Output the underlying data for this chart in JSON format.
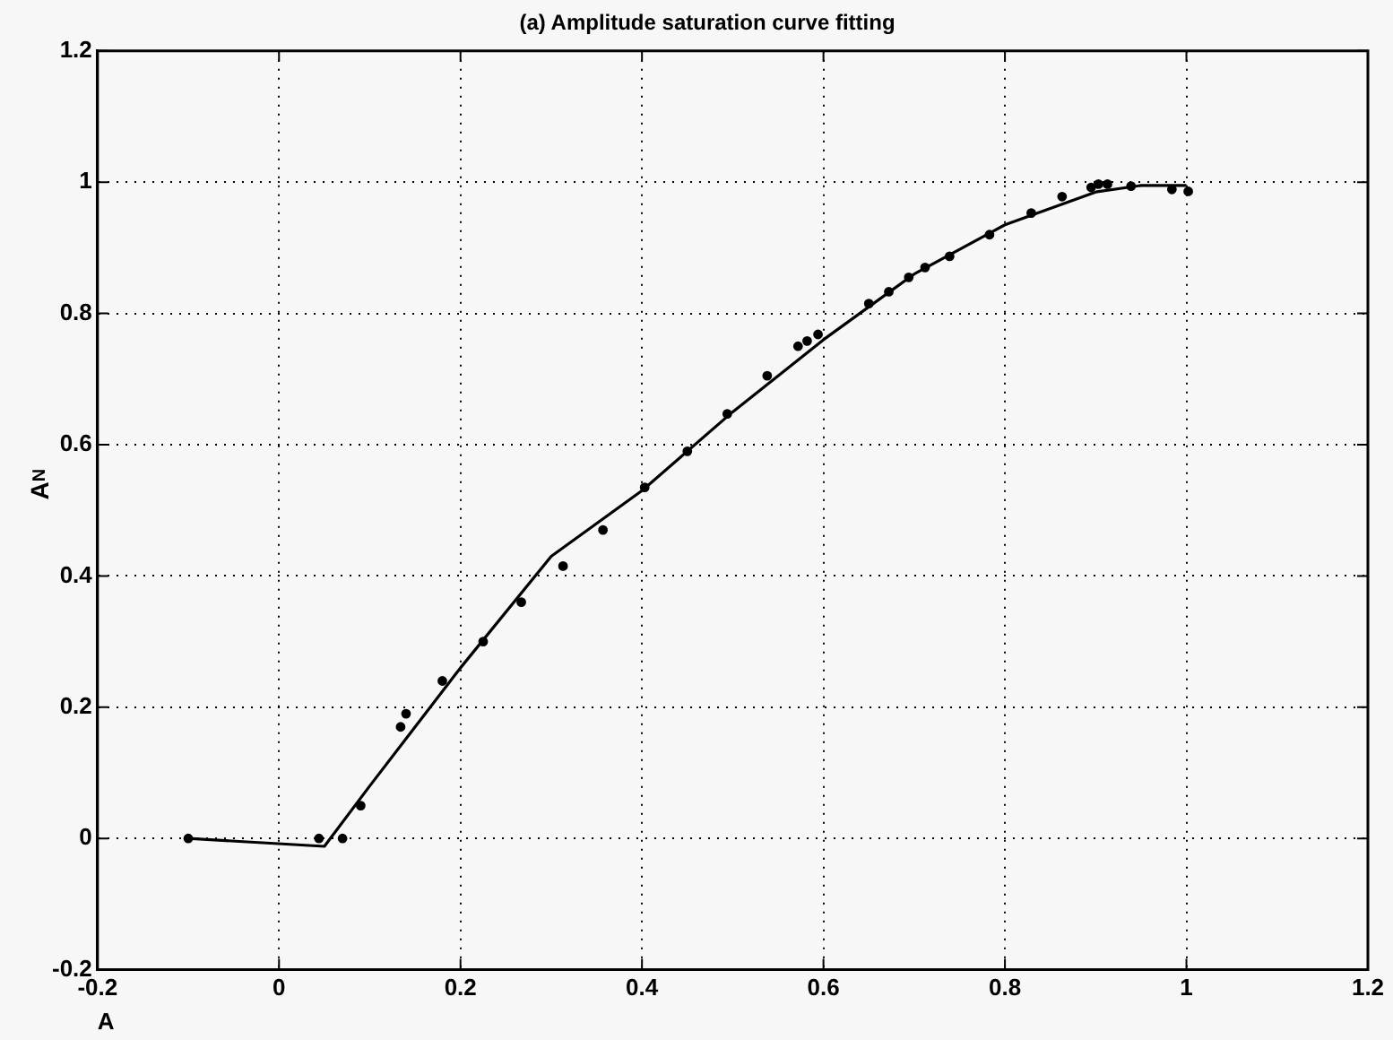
{
  "chart_data": {
    "type": "scatter",
    "title": "(a) Amplitude saturation curve fitting",
    "xlabel": "A",
    "ylabel": "A$_{N}$",
    "xlim": [
      -0.2,
      1.2
    ],
    "xticks": [
      -0.2,
      0,
      0.2,
      0.4,
      0.6,
      0.8,
      1,
      1.2
    ],
    "ylim": [
      -0.2,
      1.2
    ],
    "yticks": [
      -0.2,
      0,
      0.2,
      0.4,
      0.6,
      0.8,
      1,
      1.2
    ],
    "grid": true,
    "line_style": "dotted",
    "series": [
      {
        "type": "scatter",
        "marker": "circle",
        "color": "#000000",
        "x": [
          -0.1,
          0.044,
          0.07,
          0.09,
          0.134,
          0.14,
          0.18,
          0.225,
          0.267,
          0.313,
          0.357,
          0.403,
          0.45,
          0.494,
          0.538,
          0.572,
          0.582,
          0.594,
          0.65,
          0.672,
          0.694,
          0.712,
          0.739,
          0.783,
          0.829,
          0.863,
          0.895,
          0.903,
          0.913,
          0.939,
          0.984,
          1.002
        ],
        "values": [
          0,
          0,
          0,
          0.05,
          0.17,
          0.19,
          0.24,
          0.3,
          0.36,
          0.415,
          0.47,
          0.535,
          0.59,
          0.647,
          0.705,
          0.75,
          0.758,
          0.768,
          0.815,
          0.833,
          0.855,
          0.87,
          0.887,
          0.92,
          0.953,
          0.978,
          0.992,
          0.997,
          0.997,
          0.994,
          0.989,
          0.986
        ]
      },
      {
        "type": "line",
        "marker": "none",
        "line_style": "solid",
        "color": "#000000",
        "x": [
          -0.1,
          0.05,
          0.1,
          0.15,
          0.2,
          0.3,
          0.4,
          0.5,
          0.6,
          0.7,
          0.8,
          0.9,
          0.95,
          1.0
        ],
        "values": [
          0,
          -0.012,
          0.08,
          0.17,
          0.26,
          0.43,
          0.53,
          0.65,
          0.76,
          0.86,
          0.935,
          0.985,
          0.995,
          0.995
        ]
      }
    ]
  }
}
